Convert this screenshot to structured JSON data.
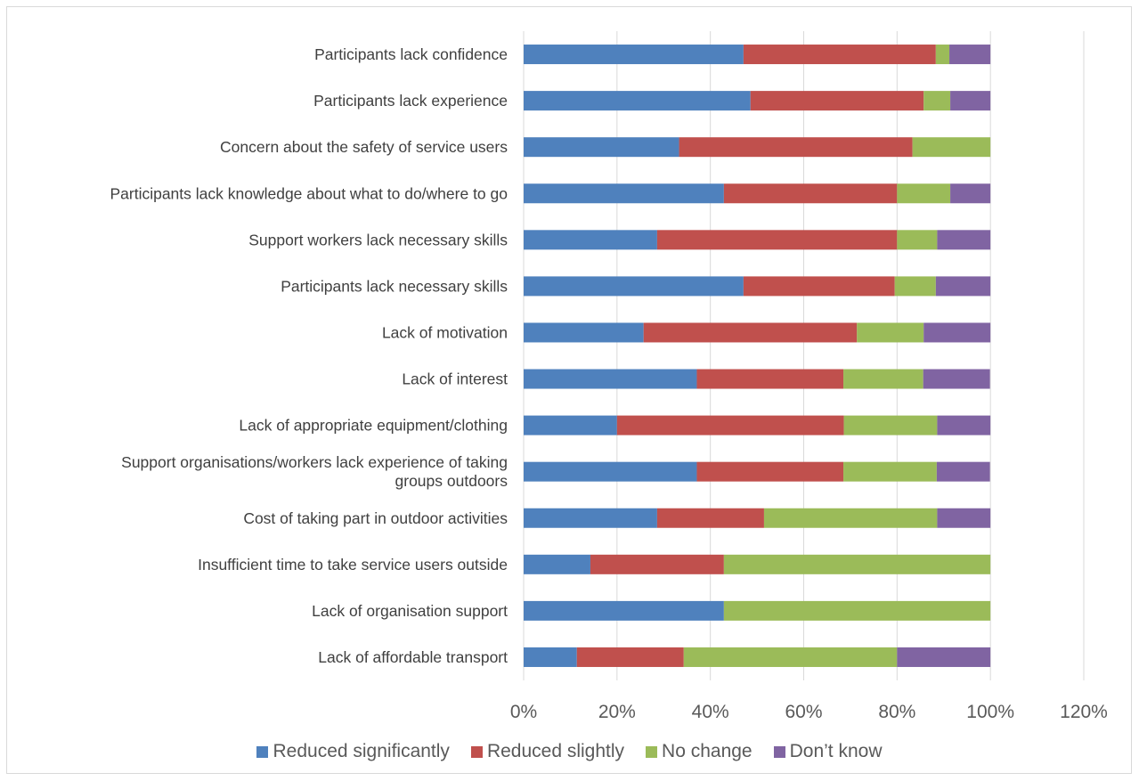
{
  "chart_data": {
    "type": "bar",
    "orientation": "horizontal",
    "stacked": true,
    "categories": [
      "Participants lack confidence",
      "Participants lack experience",
      "Concern about the safety of service users",
      "Participants lack knowledge about what to do/where to go",
      "Support workers lack necessary skills",
      "Participants lack necessary skills",
      "Lack of motivation",
      "Lack of interest",
      "Lack of appropriate equipment/clothing",
      [
        "Support organisations/workers lack experience of taking",
        "groups outdoors"
      ],
      "Cost of taking part in outdoor activities",
      "Insufficient time to take service users outside",
      "Lack of organisation support",
      "Lack of affordable transport"
    ],
    "series": [
      {
        "name": "Reduced significantly",
        "color": "#4f81bd",
        "values": [
          47.1,
          48.6,
          33.3,
          42.9,
          28.6,
          47.1,
          25.7,
          37.1,
          20.0,
          37.1,
          28.6,
          14.3,
          42.9,
          11.4
        ]
      },
      {
        "name": "Reduced slightly",
        "color": "#c0504d",
        "values": [
          41.2,
          37.1,
          50.0,
          37.1,
          51.4,
          32.4,
          45.7,
          31.4,
          48.6,
          31.4,
          22.9,
          28.6,
          0,
          22.9
        ]
      },
      {
        "name": "No change",
        "color": "#9bbb59",
        "values": [
          2.9,
          5.7,
          16.7,
          11.4,
          8.6,
          8.8,
          14.3,
          17.1,
          20.0,
          20.0,
          37.1,
          57.1,
          57.1,
          45.7
        ]
      },
      {
        "name": "Don’t know",
        "color": "#8064a2",
        "values": [
          8.8,
          8.6,
          0,
          8.6,
          11.4,
          11.7,
          14.3,
          14.3,
          11.4,
          11.4,
          11.4,
          0,
          0,
          20.0
        ]
      }
    ],
    "xaxis": {
      "range": [
        0,
        120
      ],
      "ticks": [
        0,
        20,
        40,
        60,
        80,
        100,
        120
      ],
      "tick_labels": [
        "0%",
        "20%",
        "40%",
        "60%",
        "80%",
        "100%",
        "120%"
      ]
    },
    "grid": true,
    "legend_position": "bottom"
  }
}
